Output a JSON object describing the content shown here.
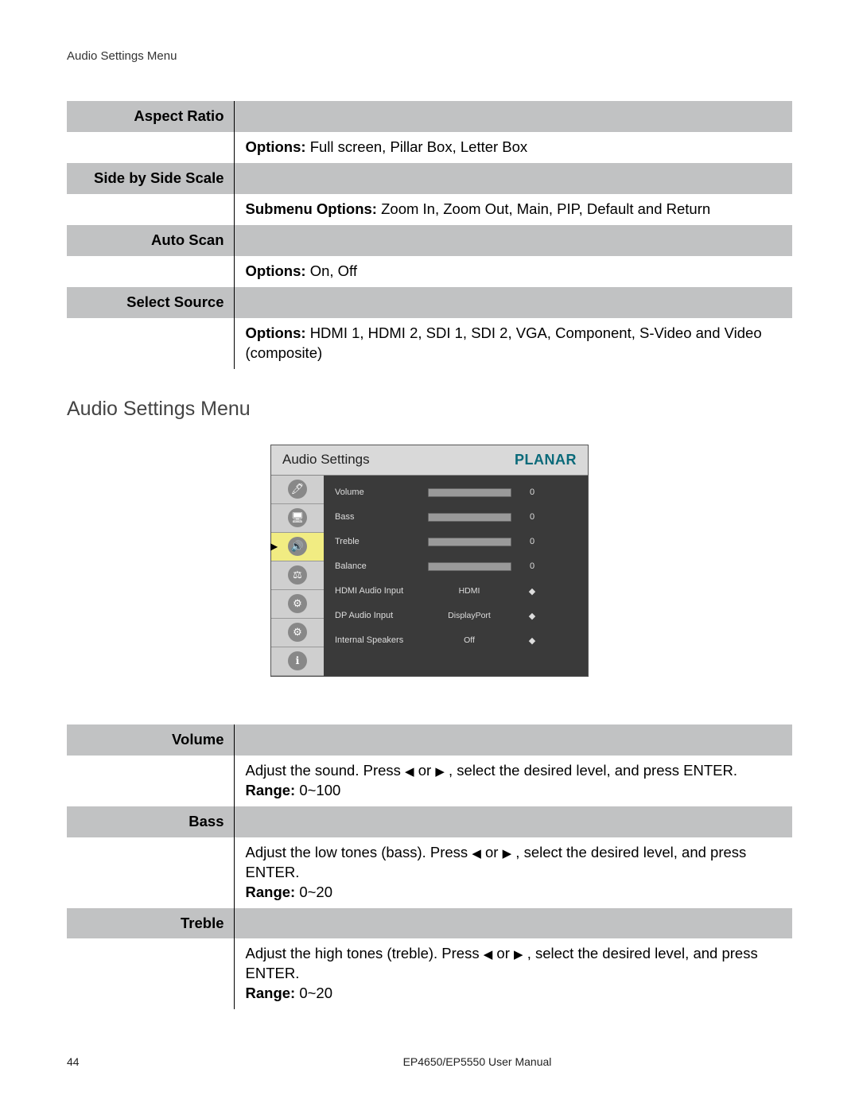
{
  "header": {
    "breadcrumb": "Audio Settings Menu"
  },
  "table1": {
    "rows": [
      {
        "shaded": true,
        "label": "Aspect Ratio",
        "prefix": "",
        "text": ""
      },
      {
        "shaded": false,
        "label": "",
        "prefix": "Options: ",
        "text": "Full screen, Pillar Box, Letter Box"
      },
      {
        "shaded": true,
        "label": "Side by Side Scale",
        "prefix": "",
        "text": ""
      },
      {
        "shaded": false,
        "label": "",
        "prefix": "Submenu Options: ",
        "text": "Zoom In, Zoom Out, Main, PIP, Default and Return"
      },
      {
        "shaded": true,
        "label": "Auto Scan",
        "prefix": "",
        "text": ""
      },
      {
        "shaded": false,
        "label": "",
        "prefix": "Options: ",
        "text": "On, Off"
      },
      {
        "shaded": true,
        "label": "Select Source",
        "prefix": "",
        "text": ""
      },
      {
        "shaded": false,
        "label": "",
        "prefix": "Options: ",
        "text": "HDMI 1, HDMI 2, SDI 1, SDI 2, VGA, Component, S-Video and Video (composite)"
      }
    ]
  },
  "section_heading": "Audio Settings Menu",
  "osd": {
    "title": "Audio Settings",
    "brand": "PLANAR",
    "sidebar_icons": [
      "🖊",
      "🖥",
      "🔊",
      "⚖",
      "⚙",
      "⚙",
      "ℹ"
    ],
    "selected_index": 2,
    "rows": [
      {
        "label": "Volume",
        "type": "slider",
        "value": "0"
      },
      {
        "label": "Bass",
        "type": "slider",
        "value": "0"
      },
      {
        "label": "Treble",
        "type": "slider",
        "value": "0"
      },
      {
        "label": "Balance",
        "type": "slider",
        "value": "0"
      },
      {
        "label": "HDMI Audio Input",
        "type": "select",
        "value": "HDMI"
      },
      {
        "label": "DP Audio Input",
        "type": "select",
        "value": "DisplayPort"
      },
      {
        "label": "Internal Speakers",
        "type": "select",
        "value": "Off"
      }
    ]
  },
  "table2": {
    "rows": [
      {
        "shaded": true,
        "label": "Volume",
        "text_before": "",
        "text_after": "",
        "range": ""
      },
      {
        "shaded": false,
        "label": "",
        "text_before": "Adjust the sound. Press ",
        "text_after": " , select the desired level, and press ENTER.",
        "range": "Range: 0~100"
      },
      {
        "shaded": true,
        "label": "Bass",
        "text_before": "",
        "text_after": "",
        "range": ""
      },
      {
        "shaded": false,
        "label": "",
        "text_before": "Adjust the low tones (bass). Press ",
        "text_after": " , select the desired level, and press ENTER.",
        "range": "Range: 0~20"
      },
      {
        "shaded": true,
        "label": "Treble",
        "text_before": "",
        "text_after": "",
        "range": ""
      },
      {
        "shaded": false,
        "label": "",
        "text_before": "Adjust the high tones (treble). Press ",
        "text_after": " , select the desired level, and press ENTER.",
        "range": "Range: 0~20"
      }
    ]
  },
  "arrows": {
    "left": "◀",
    "right": "▶",
    "sep": " or "
  },
  "footer": {
    "page": "44",
    "title": "EP4650/EP5550 User Manual"
  },
  "colors": {
    "shaded_bg": "#c1c2c3",
    "osd_bg": "#3a3a3a",
    "osd_sidebar": "#cfcfcf",
    "osd_selected": "#f1ec82",
    "brand_color": "#0a6a7a"
  }
}
